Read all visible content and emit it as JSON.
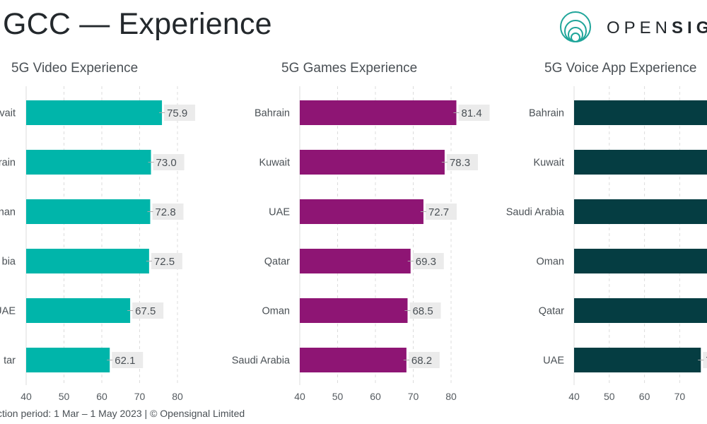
{
  "header": {
    "title": "GCC — Experience",
    "logo_text_light": "OPEN",
    "logo_text_bold": "SIG"
  },
  "footer": {
    "text": "ction period: 1 Mar – 1 May 2023 |  © Opensignal Limited"
  },
  "chart_data": [
    {
      "type": "bar",
      "orientation": "horizontal",
      "title": "5G Video Experience",
      "color": "#00b5aa",
      "categories": [
        "Kuwait",
        "Bahrain",
        "Oman",
        "Saudi Arabia",
        "UAE",
        "Qatar"
      ],
      "visible_category_labels": [
        "vait",
        "rain",
        "nan",
        "bia",
        "UAE",
        "tar"
      ],
      "values": [
        75.9,
        73.0,
        72.8,
        72.5,
        67.5,
        62.1
      ],
      "value_labels": [
        "75.9",
        "73.0",
        "72.8",
        "72.5",
        "67.5",
        "62.1"
      ],
      "xlim": [
        40,
        80
      ],
      "xticks": [
        "40",
        "50",
        "60",
        "70",
        "80"
      ],
      "grid": true
    },
    {
      "type": "bar",
      "orientation": "horizontal",
      "title": "5G Games Experience",
      "color": "#8e1574",
      "categories": [
        "Bahrain",
        "Kuwait",
        "UAE",
        "Qatar",
        "Oman",
        "Saudi Arabia"
      ],
      "values": [
        81.4,
        78.3,
        72.7,
        69.3,
        68.5,
        68.2
      ],
      "value_labels": [
        "81.4",
        "78.3",
        "72.7",
        "69.3",
        "68.5",
        "68.2"
      ],
      "xlim": [
        40,
        80
      ],
      "xticks": [
        "40",
        "50",
        "60",
        "70",
        "80"
      ],
      "grid": true
    },
    {
      "type": "bar",
      "orientation": "horizontal",
      "title": "5G Voice App Experience",
      "color": "#053d42",
      "categories": [
        "Bahrain",
        "Kuwait",
        "Saudi Arabia",
        "Oman",
        "Qatar",
        "UAE"
      ],
      "values": [
        80,
        80,
        80,
        80,
        80,
        76
      ],
      "value_labels": [
        "",
        "",
        "",
        "",
        "",
        "7"
      ],
      "xlim": [
        40,
        80
      ],
      "xticks": [
        "40",
        "50",
        "60",
        "70"
      ],
      "grid": true
    }
  ]
}
